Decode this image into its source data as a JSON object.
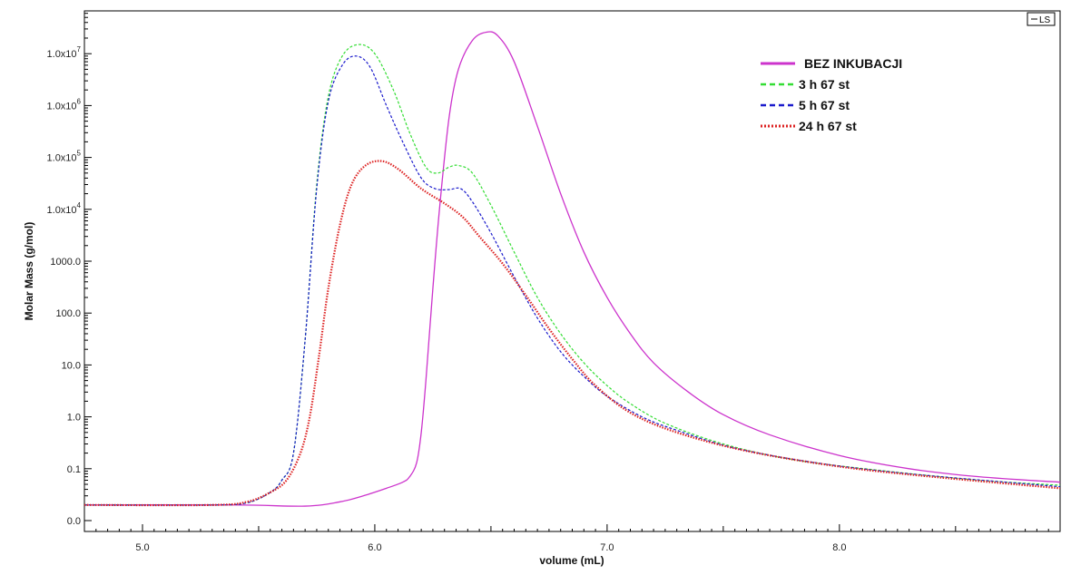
{
  "chart_data": {
    "type": "line",
    "xlabel": "volume (mL)",
    "ylabel": "Molar Mass (g/mol)",
    "xlim": [
      4.75,
      8.95
    ],
    "y_scale": "log",
    "x_ticks": [
      5.0,
      6.0,
      7.0,
      8.0
    ],
    "x_tick_labels": [
      "5.0",
      "6.0",
      "7.0",
      "8.0"
    ],
    "y_tick_labels": [
      {
        "base": "0.0",
        "exp": ""
      },
      {
        "base": "0.1",
        "exp": ""
      },
      {
        "base": "1.0",
        "exp": ""
      },
      {
        "base": "10.0",
        "exp": ""
      },
      {
        "base": "100.0",
        "exp": ""
      },
      {
        "base": "1000.0",
        "exp": ""
      },
      {
        "base": "1.0x10",
        "exp": "4"
      },
      {
        "base": "1.0x10",
        "exp": "5"
      },
      {
        "base": "1.0x10",
        "exp": "6"
      },
      {
        "base": "1.0x10",
        "exp": "7"
      }
    ],
    "legend_position": "top-right",
    "corner_tag": "LS",
    "series": [
      {
        "name": "BEZ INKUBACJI",
        "color": "#cc33cc",
        "style": "solid",
        "points": [
          [
            4.75,
            0.02
          ],
          [
            5.4,
            0.02
          ],
          [
            5.7,
            0.019
          ],
          [
            5.85,
            0.023
          ],
          [
            5.95,
            0.03
          ],
          [
            6.05,
            0.042
          ],
          [
            6.12,
            0.055
          ],
          [
            6.15,
            0.07
          ],
          [
            6.18,
            0.13
          ],
          [
            6.2,
            0.5
          ],
          [
            6.22,
            5
          ],
          [
            6.25,
            300
          ],
          [
            6.28,
            12000
          ],
          [
            6.32,
            600000
          ],
          [
            6.36,
            5000000
          ],
          [
            6.42,
            18000000
          ],
          [
            6.48,
            26000000
          ],
          [
            6.53,
            22000000
          ],
          [
            6.6,
            7000000
          ],
          [
            6.7,
            400000
          ],
          [
            6.8,
            20000
          ],
          [
            6.9,
            1500
          ],
          [
            7.0,
            200
          ],
          [
            7.1,
            40
          ],
          [
            7.2,
            11
          ],
          [
            7.35,
            3
          ],
          [
            7.5,
            1.1
          ],
          [
            7.7,
            0.45
          ],
          [
            8.0,
            0.18
          ],
          [
            8.3,
            0.1
          ],
          [
            8.6,
            0.07
          ],
          [
            8.95,
            0.055
          ]
        ]
      },
      {
        "name": "3 h 67 st",
        "color": "#33dd33",
        "style": "dashed",
        "points": [
          [
            4.75,
            0.02
          ],
          [
            5.3,
            0.02
          ],
          [
            5.45,
            0.022
          ],
          [
            5.55,
            0.035
          ],
          [
            5.6,
            0.06
          ],
          [
            5.65,
            0.2
          ],
          [
            5.7,
            30
          ],
          [
            5.75,
            30000
          ],
          [
            5.8,
            1500000
          ],
          [
            5.86,
            9000000
          ],
          [
            5.93,
            15000000
          ],
          [
            6.0,
            10000000
          ],
          [
            6.08,
            2000000
          ],
          [
            6.15,
            300000
          ],
          [
            6.22,
            65000
          ],
          [
            6.27,
            50000
          ],
          [
            6.32,
            65000
          ],
          [
            6.36,
            70000
          ],
          [
            6.42,
            50000
          ],
          [
            6.5,
            12000
          ],
          [
            6.6,
            1500
          ],
          [
            6.7,
            200
          ],
          [
            6.8,
            40
          ],
          [
            6.9,
            11
          ],
          [
            7.0,
            4
          ],
          [
            7.1,
            1.8
          ],
          [
            7.25,
            0.75
          ],
          [
            7.5,
            0.3
          ],
          [
            7.8,
            0.15
          ],
          [
            8.2,
            0.09
          ],
          [
            8.6,
            0.06
          ],
          [
            8.95,
            0.048
          ]
        ]
      },
      {
        "name": "5 h 67 st",
        "color": "#1a1acc",
        "style": "dashed",
        "points": [
          [
            4.75,
            0.02
          ],
          [
            5.3,
            0.02
          ],
          [
            5.45,
            0.022
          ],
          [
            5.55,
            0.035
          ],
          [
            5.6,
            0.06
          ],
          [
            5.65,
            0.2
          ],
          [
            5.7,
            30
          ],
          [
            5.75,
            25000
          ],
          [
            5.8,
            1200000
          ],
          [
            5.86,
            6000000
          ],
          [
            5.92,
            9000000
          ],
          [
            5.98,
            5500000
          ],
          [
            6.05,
            1000000
          ],
          [
            6.12,
            200000
          ],
          [
            6.2,
            40000
          ],
          [
            6.26,
            25000
          ],
          [
            6.32,
            24000
          ],
          [
            6.37,
            25000
          ],
          [
            6.42,
            14000
          ],
          [
            6.5,
            3500
          ],
          [
            6.6,
            500
          ],
          [
            6.7,
            80
          ],
          [
            6.8,
            18
          ],
          [
            6.9,
            6
          ],
          [
            7.0,
            2.5
          ],
          [
            7.15,
            1
          ],
          [
            7.3,
            0.55
          ],
          [
            7.55,
            0.25
          ],
          [
            7.9,
            0.13
          ],
          [
            8.3,
            0.08
          ],
          [
            8.95,
            0.045
          ]
        ]
      },
      {
        "name": "24 h 67 st",
        "color": "#dd2222",
        "style": "dotted",
        "points": [
          [
            4.75,
            0.02
          ],
          [
            5.3,
            0.02
          ],
          [
            5.45,
            0.023
          ],
          [
            5.55,
            0.035
          ],
          [
            5.62,
            0.06
          ],
          [
            5.68,
            0.2
          ],
          [
            5.72,
            1
          ],
          [
            5.76,
            15
          ],
          [
            5.8,
            300
          ],
          [
            5.85,
            5000
          ],
          [
            5.9,
            30000
          ],
          [
            5.96,
            70000
          ],
          [
            6.03,
            85000
          ],
          [
            6.1,
            60000
          ],
          [
            6.2,
            25000
          ],
          [
            6.3,
            13000
          ],
          [
            6.38,
            7000
          ],
          [
            6.45,
            3000
          ],
          [
            6.55,
            900
          ],
          [
            6.65,
            220
          ],
          [
            6.75,
            50
          ],
          [
            6.85,
            13
          ],
          [
            6.95,
            4
          ],
          [
            7.1,
            1.2
          ],
          [
            7.3,
            0.5
          ],
          [
            7.6,
            0.22
          ],
          [
            8.0,
            0.11
          ],
          [
            8.4,
            0.07
          ],
          [
            8.95,
            0.042
          ]
        ]
      }
    ]
  }
}
